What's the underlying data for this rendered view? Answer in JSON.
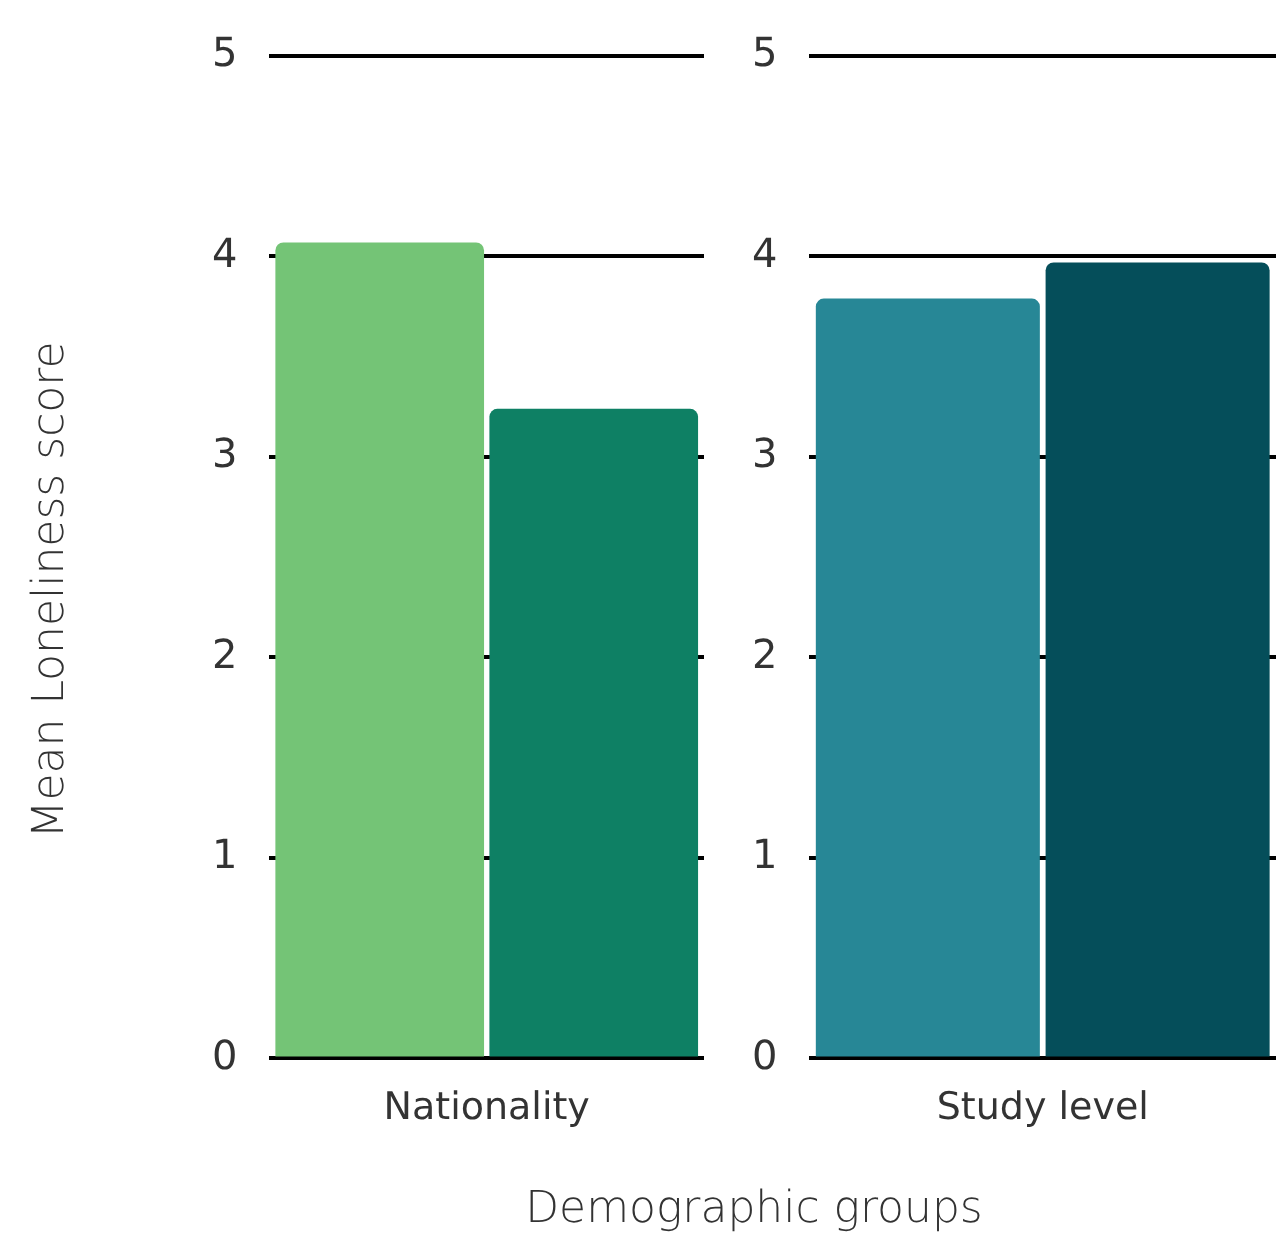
{
  "chart_data": [
    {
      "type": "bar",
      "ylabel": "Mean Loneliness score",
      "xlabel": "Demographic groups",
      "categories": [
        "Nationality"
      ],
      "series": [
        {
          "color": "#74c476",
          "values": [
            4.07
          ]
        },
        {
          "color": "#0e8064",
          "values": [
            3.24
          ]
        }
      ],
      "ylim": [
        0,
        5
      ],
      "yticks": [
        0,
        1,
        2,
        3,
        4,
        5
      ],
      "grid": "y",
      "legend": false
    },
    {
      "type": "bar",
      "categories": [
        "Study level"
      ],
      "series": [
        {
          "color": "#278796",
          "values": [
            3.79
          ]
        },
        {
          "color": "#054e5a",
          "values": [
            3.97
          ]
        }
      ],
      "ylim": [
        0,
        5
      ],
      "yticks": [
        0,
        1,
        2,
        3,
        4,
        5
      ],
      "grid": "y",
      "legend": false
    }
  ]
}
